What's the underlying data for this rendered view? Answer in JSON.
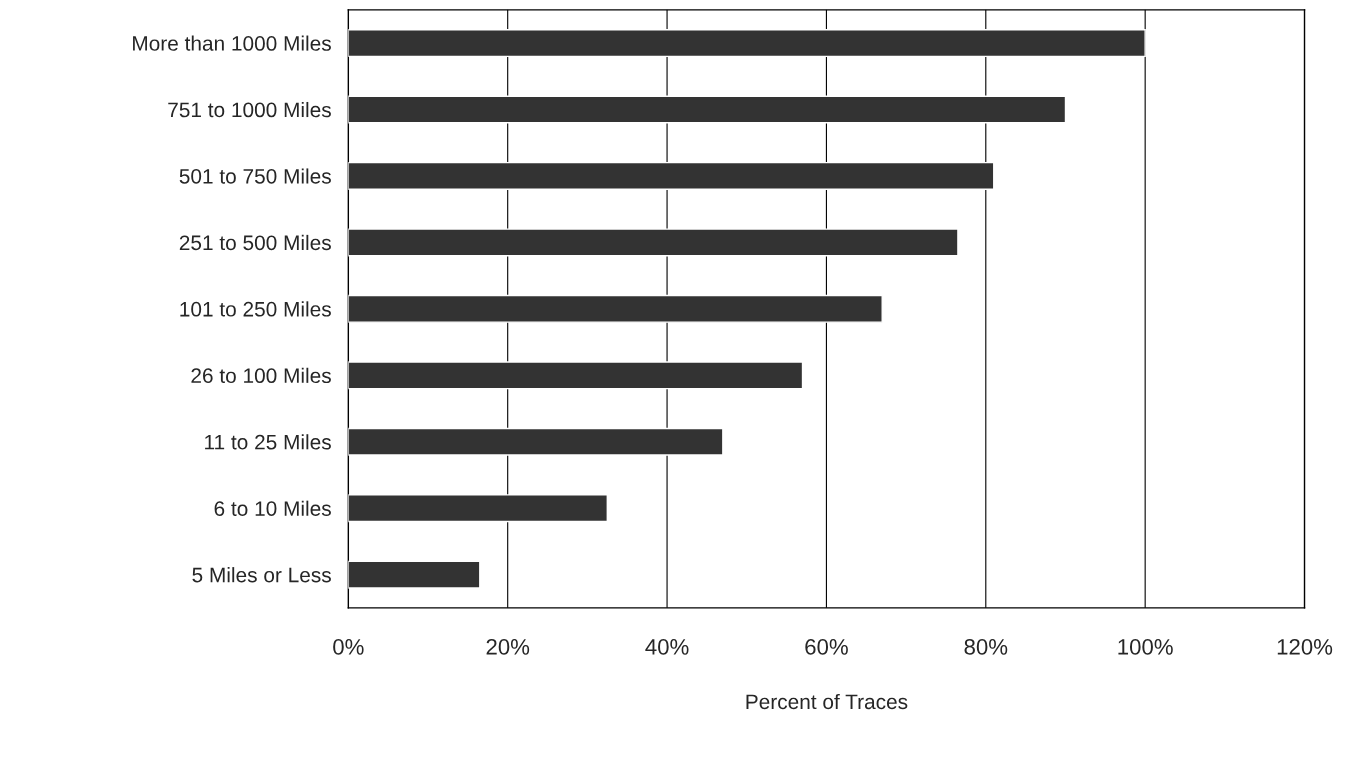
{
  "chart_data": {
    "type": "bar",
    "orientation": "horizontal",
    "categories": [
      "More than 1000 Miles",
      "751 to 1000 Miles",
      "501 to 750 Miles",
      "251 to 500 Miles",
      "101 to 250 Miles",
      "26 to 100 Miles",
      "11 to 25 Miles",
      "6 to 10 Miles",
      "5 Miles or Less"
    ],
    "values": [
      100,
      90,
      81,
      76.5,
      67,
      57,
      47,
      32.5,
      16.5
    ],
    "color": "#333333",
    "xlabel": "Percent of Traces",
    "xlim": [
      0,
      120
    ],
    "xticks": [
      {
        "value": 0,
        "label": "0%"
      },
      {
        "value": 20,
        "label": "20%"
      },
      {
        "value": 40,
        "label": "40%"
      },
      {
        "value": 60,
        "label": "60%"
      },
      {
        "value": 80,
        "label": "80%"
      },
      {
        "value": 100,
        "label": "100%"
      },
      {
        "value": 120,
        "label": "120%"
      }
    ],
    "grid": "x"
  }
}
